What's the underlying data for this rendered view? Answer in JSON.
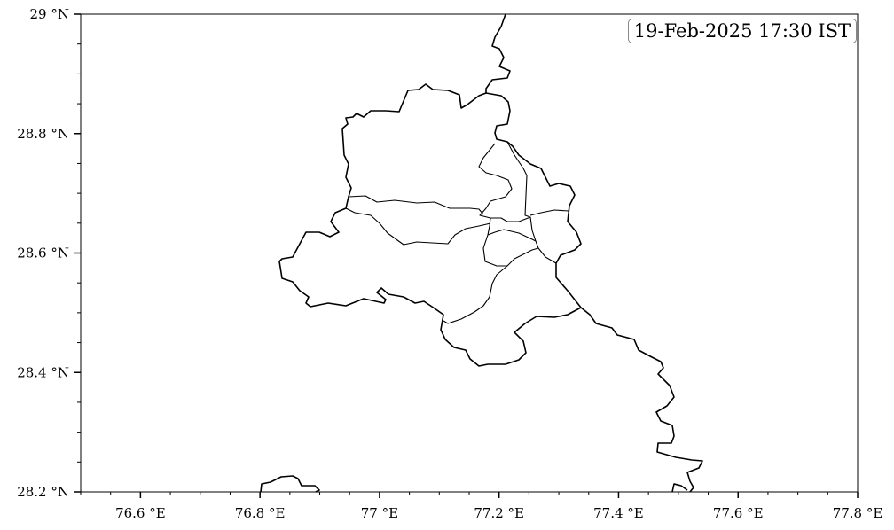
{
  "timestamp": "19-Feb-2025 17:30 IST",
  "map": {
    "lon_range": [
      76.5,
      77.8
    ],
    "lat_range": [
      28.2,
      29.0
    ],
    "x_ticks": [
      {
        "value": 76.6,
        "label": "76.6 °E"
      },
      {
        "value": 76.8,
        "label": "76.8 °E"
      },
      {
        "value": 77.0,
        "label": "77 °E"
      },
      {
        "value": 77.2,
        "label": "77.2 °E"
      },
      {
        "value": 77.4,
        "label": "77.4 °E"
      },
      {
        "value": 77.6,
        "label": "77.6 °E"
      },
      {
        "value": 77.8,
        "label": "77.8 °E"
      }
    ],
    "y_ticks": [
      {
        "value": 28.2,
        "label": "28.2 °N"
      },
      {
        "value": 28.4,
        "label": "28.4 °N"
      },
      {
        "value": 28.6,
        "label": "28.6 °N"
      },
      {
        "value": 28.8,
        "label": "28.8 °N"
      },
      {
        "value": 29.0,
        "label": "29 °N"
      }
    ],
    "minor_tick_step": 0.05,
    "line_color": "#000000",
    "background": "#ffffff"
  }
}
